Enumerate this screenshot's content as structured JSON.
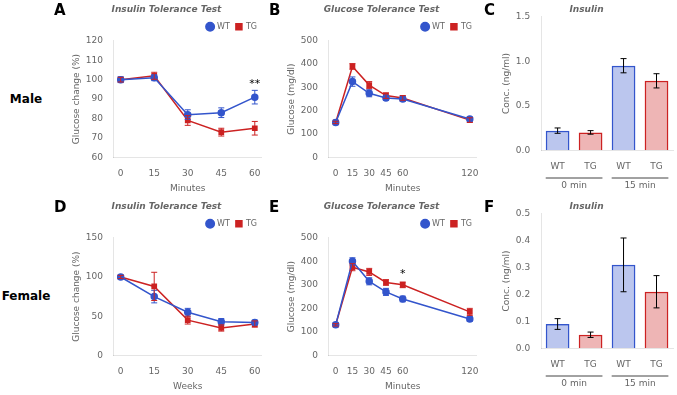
{
  "chart_data": [
    {
      "type": "line",
      "panel_label": "A",
      "row_label": "Male",
      "title": "Insulin Tolerance Test",
      "x_label": "Minutes",
      "y_label": "Glucose change (%)",
      "x": [
        0,
        15,
        30,
        45,
        60
      ],
      "series": [
        {
          "name": "WT",
          "color": "#3355cc",
          "marker": "circle",
          "values": [
            100,
            101,
            82,
            83,
            91
          ],
          "errors": [
            1.5,
            1.5,
            2.5,
            2.5,
            3.5
          ]
        },
        {
          "name": "TG",
          "color": "#cc2222",
          "marker": "square",
          "values": [
            100,
            102,
            79,
            73,
            75
          ],
          "errors": [
            1.2,
            1.8,
            2.5,
            2.0,
            3.5
          ]
        }
      ],
      "xlim": [
        -3,
        63
      ],
      "xticks": [
        0,
        15,
        30,
        45,
        60
      ],
      "ylim": [
        60,
        120
      ],
      "yticks": [
        60,
        70,
        80,
        90,
        100,
        110,
        120
      ],
      "grid": false,
      "legend": "top-right",
      "annotations": [
        {
          "text": "**",
          "x": 60,
          "y": 95
        }
      ]
    },
    {
      "type": "line",
      "panel_label": "B",
      "title": "Glucose Tolerance Test",
      "x_label": "Minutes",
      "y_label": "Glucose (mg/dl)",
      "x": [
        0,
        15,
        30,
        45,
        60,
        120
      ],
      "series": [
        {
          "name": "WT",
          "color": "#3355cc",
          "marker": "circle",
          "values": [
            150,
            325,
            275,
            255,
            250,
            165
          ],
          "errors": [
            5,
            20,
            15,
            10,
            10,
            8
          ]
        },
        {
          "name": "TG",
          "color": "#cc2222",
          "marker": "square",
          "values": [
            150,
            390,
            310,
            265,
            255,
            160
          ],
          "errors": [
            5,
            12,
            15,
            12,
            10,
            10
          ]
        }
      ],
      "xlim": [
        -6,
        126
      ],
      "xticks": [
        0,
        15,
        30,
        45,
        60,
        120
      ],
      "ylim": [
        0,
        500
      ],
      "yticks": [
        0,
        100,
        200,
        300,
        400,
        500
      ],
      "grid": false,
      "legend": "top-right"
    },
    {
      "type": "bar",
      "panel_label": "C",
      "title": "Insulin",
      "y_label": "Conc. (ng/ml)",
      "categories": [
        "WT",
        "TG",
        "WT",
        "TG"
      ],
      "group_labels": [
        "0 min",
        "15 min"
      ],
      "values": [
        0.22,
        0.2,
        0.95,
        0.78
      ],
      "errors": [
        0.03,
        0.02,
        0.08,
        0.08
      ],
      "colors": [
        "#3355cc",
        "#cc2222",
        "#3355cc",
        "#cc2222"
      ],
      "ylim": [
        0,
        1.5
      ],
      "yticks": [
        {
          "value": 0,
          "label": "0.0"
        },
        0.5,
        {
          "value": 1,
          "label": "1.0"
        },
        1.5
      ],
      "grid": false
    },
    {
      "type": "line",
      "panel_label": "D",
      "row_label": "Female",
      "title": "Insulin Tolerance Test",
      "x_label": "Weeks",
      "y_label": "Glucose change (%)",
      "x": [
        0,
        15,
        30,
        45,
        60
      ],
      "series": [
        {
          "name": "WT",
          "color": "#3355cc",
          "marker": "circle",
          "values": [
            100,
            75,
            55,
            43,
            42
          ],
          "errors": [
            2,
            8,
            5,
            4,
            3
          ]
        },
        {
          "name": "TG",
          "color": "#cc2222",
          "marker": "square",
          "values": [
            100,
            88,
            45,
            35,
            40
          ],
          "errors": [
            2,
            18,
            5,
            4,
            4
          ]
        }
      ],
      "xlim": [
        -3,
        63
      ],
      "xticks": [
        0,
        15,
        30,
        45,
        60
      ],
      "ylim": [
        0,
        150
      ],
      "yticks": [
        0,
        50,
        100,
        150
      ],
      "grid": false,
      "legend": "top-right"
    },
    {
      "type": "line",
      "panel_label": "E",
      "title": "Glucose Tolerance Test",
      "x_label": "Minutes",
      "y_label": "Glucose (mg/dl)",
      "x": [
        0,
        15,
        30,
        45,
        60,
        120
      ],
      "series": [
        {
          "name": "WT",
          "color": "#3355cc",
          "marker": "circle",
          "values": [
            130,
            400,
            315,
            270,
            240,
            155
          ],
          "errors": [
            5,
            15,
            15,
            15,
            12,
            10
          ]
        },
        {
          "name": "TG",
          "color": "#cc2222",
          "marker": "square",
          "values": [
            130,
            375,
            355,
            310,
            300,
            185
          ],
          "errors": [
            5,
            15,
            15,
            12,
            12,
            15
          ]
        }
      ],
      "xlim": [
        -6,
        126
      ],
      "xticks": [
        0,
        15,
        30,
        45,
        60,
        120
      ],
      "ylim": [
        0,
        500
      ],
      "yticks": [
        0,
        100,
        200,
        300,
        400,
        500
      ],
      "grid": false,
      "legend": "top-right",
      "annotations": [
        {
          "text": "*",
          "x": 60,
          "y": 320
        }
      ]
    },
    {
      "type": "bar",
      "panel_label": "F",
      "title": "Insulin",
      "y_label": "Conc. (ng/ml)",
      "categories": [
        "WT",
        "TG",
        "WT",
        "TG"
      ],
      "group_labels": [
        "0 min",
        "15 min"
      ],
      "values": [
        0.09,
        0.05,
        0.31,
        0.21
      ],
      "errors": [
        0.02,
        0.01,
        0.1,
        0.06
      ],
      "colors": [
        "#3355cc",
        "#cc2222",
        "#3355cc",
        "#cc2222"
      ],
      "ylim": [
        0,
        0.5
      ],
      "yticks": [
        {
          "value": 0,
          "label": "0.0"
        },
        0.1,
        0.2,
        0.3,
        0.4,
        0.5
      ],
      "grid": false
    }
  ]
}
